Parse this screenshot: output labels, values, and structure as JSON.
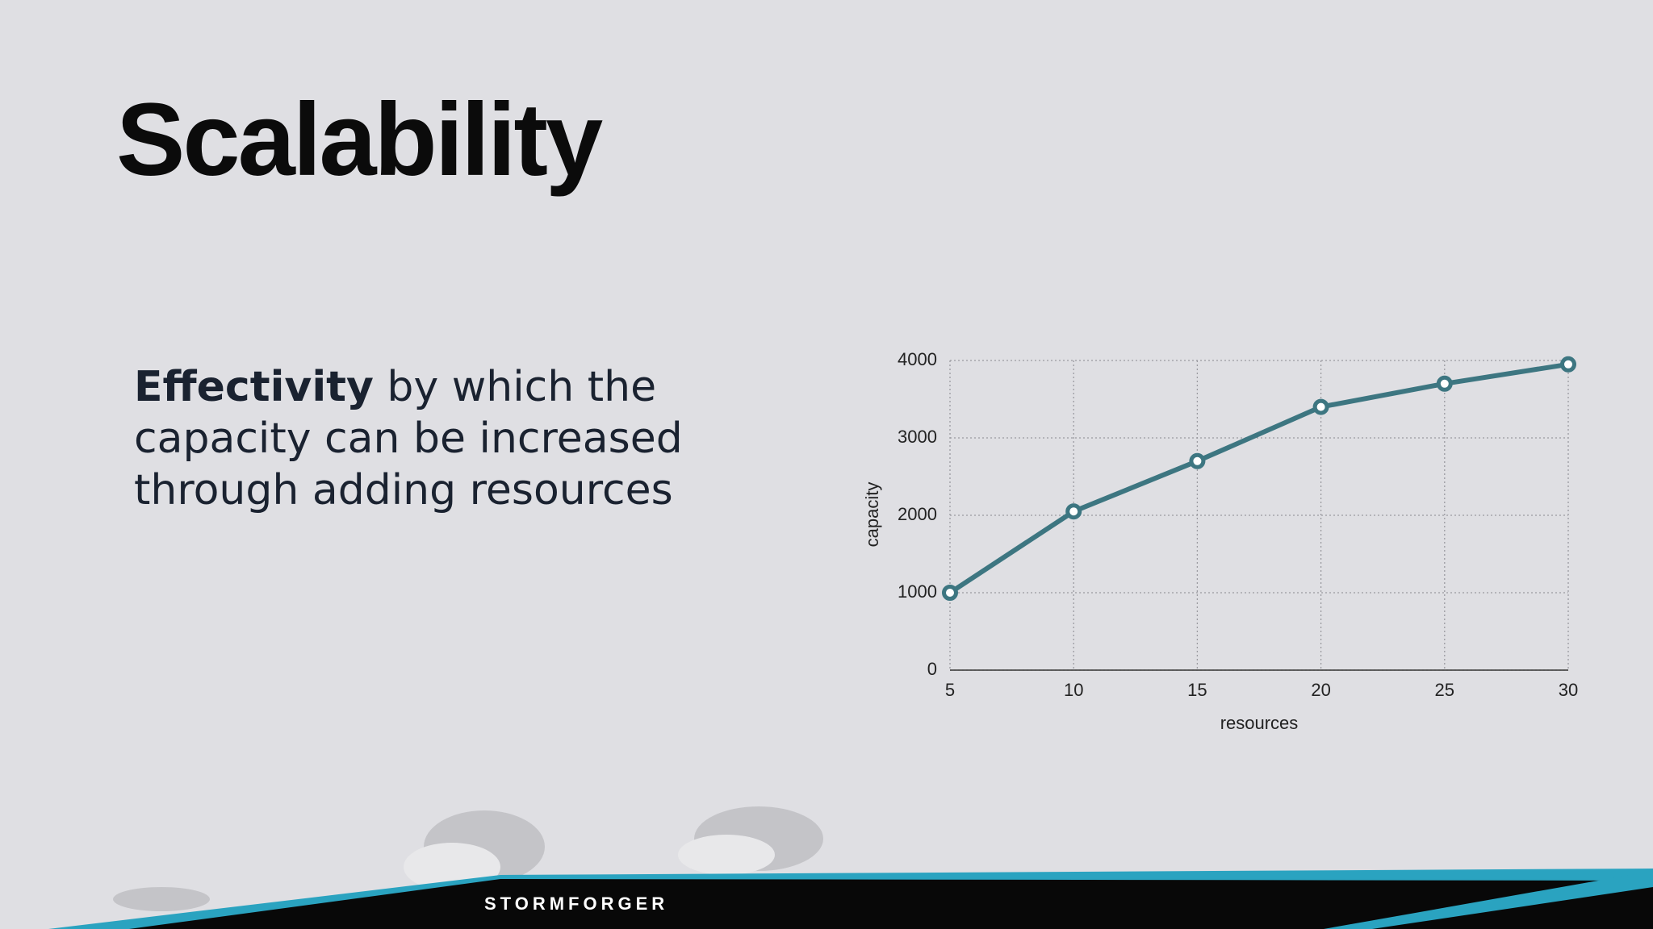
{
  "slide": {
    "title": "Scalability",
    "body_bold": "Effectivity",
    "body_rest": " by which the capacity can be increased through adding resources",
    "logo": "STORMFORGER"
  },
  "chart_data": {
    "type": "line",
    "x": [
      5,
      10,
      15,
      20,
      25,
      30
    ],
    "values": [
      1000,
      2050,
      2700,
      3400,
      3700,
      3950
    ],
    "color": "#3d7681",
    "xlim": [
      5,
      30
    ],
    "ylim": [
      0,
      4000
    ],
    "xticks": [
      5,
      10,
      15,
      20,
      25,
      30
    ],
    "yticks": [
      0,
      1000,
      2000,
      3000,
      4000
    ],
    "xlabel": "resources",
    "ylabel": "capacity",
    "grid": true
  }
}
